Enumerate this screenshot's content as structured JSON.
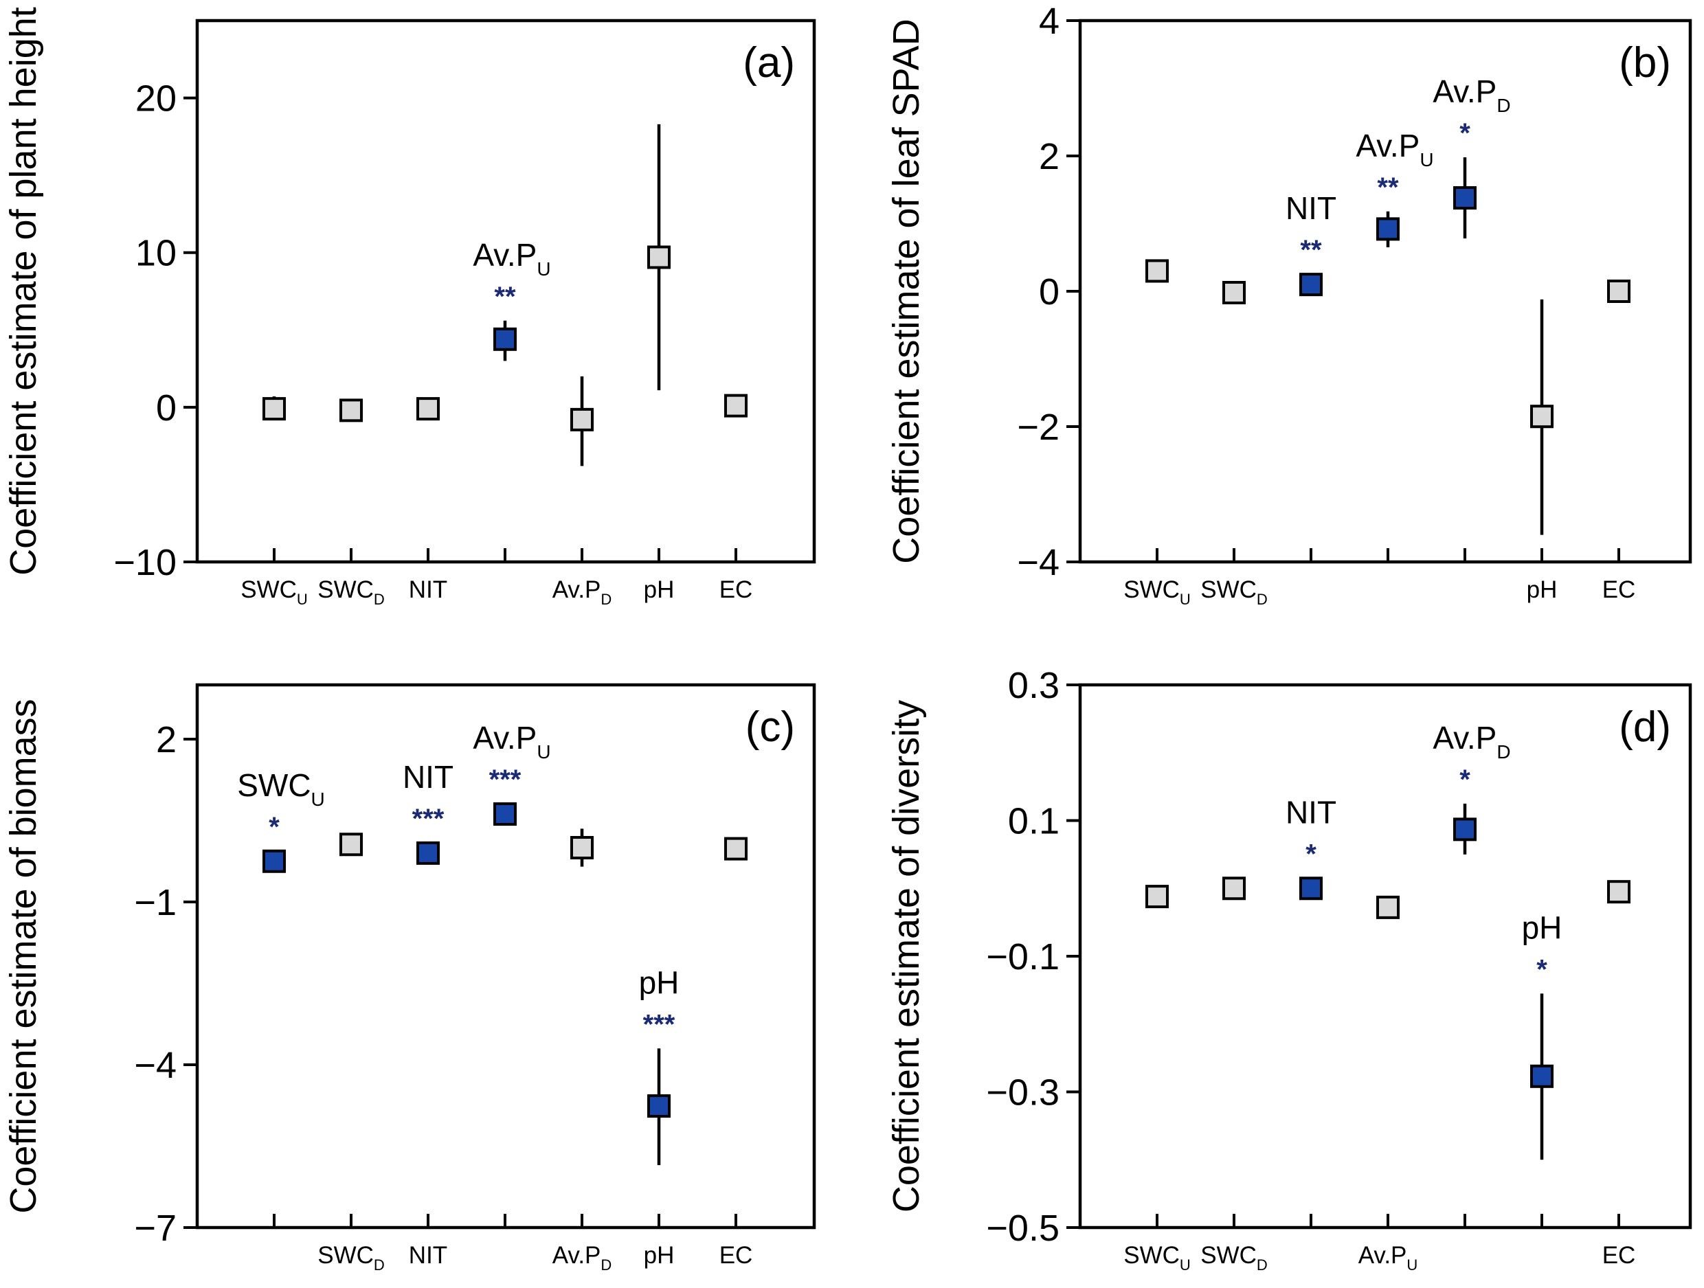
{
  "colors": {
    "significant": "#1746A8",
    "nonsignificant": "#D9D9D9",
    "stars": "#1B2A75"
  },
  "chart_data": [
    {
      "type": "scatter",
      "panel": "(a)",
      "title": "",
      "xlabel": "",
      "ylabel": "Coefficient estimate of plant height",
      "ylim": [
        -10,
        25
      ],
      "yticks": [
        -10,
        0,
        10,
        20
      ],
      "yticklabels": [
        "−10",
        "0",
        "10",
        "20"
      ],
      "categories": [
        {
          "main": "SWC",
          "sub": "U"
        },
        {
          "main": "SWC",
          "sub": "D"
        },
        {
          "main": "NIT",
          "sub": ""
        },
        {
          "main": "Av.P",
          "sub": "U"
        },
        {
          "main": "Av.P",
          "sub": "D"
        },
        {
          "main": "pH",
          "sub": ""
        },
        {
          "main": "EC",
          "sub": ""
        }
      ],
      "xtick_shown": [
        true,
        true,
        true,
        false,
        true,
        true,
        true
      ],
      "values": [
        -0.1,
        -0.2,
        -0.1,
        4.4,
        -0.8,
        9.7,
        0.1
      ],
      "err_low": [
        -0.8,
        -0.6,
        -0.5,
        3.0,
        -3.8,
        1.1,
        -0.3
      ],
      "err_high": [
        0.7,
        0.2,
        0.3,
        5.6,
        2.0,
        18.3,
        0.5
      ],
      "significant": [
        false,
        false,
        false,
        true,
        false,
        false,
        false
      ],
      "annotations": [
        {
          "index": 3,
          "label": "Av.P",
          "sub": "U",
          "stars": "**"
        }
      ]
    },
    {
      "type": "scatter",
      "panel": "(b)",
      "title": "",
      "xlabel": "",
      "ylabel": "Coefficient estimate of leaf SPAD",
      "ylim": [
        -4,
        4
      ],
      "yticks": [
        -4,
        -2,
        0,
        2,
        4
      ],
      "yticklabels": [
        "−4",
        "−2",
        "0",
        "2",
        "4"
      ],
      "categories": [
        {
          "main": "SWC",
          "sub": "U"
        },
        {
          "main": "SWC",
          "sub": "D"
        },
        {
          "main": "NIT",
          "sub": ""
        },
        {
          "main": "Av.P",
          "sub": "U"
        },
        {
          "main": "Av.P",
          "sub": "D"
        },
        {
          "main": "pH",
          "sub": ""
        },
        {
          "main": "EC",
          "sub": ""
        }
      ],
      "xtick_shown": [
        true,
        true,
        false,
        false,
        false,
        true,
        true
      ],
      "values": [
        0.3,
        -0.02,
        0.1,
        0.92,
        1.38,
        -1.85,
        0.0
      ],
      "err_low": [
        0.18,
        -0.08,
        0.02,
        0.65,
        0.78,
        -3.6,
        -0.04
      ],
      "err_high": [
        0.42,
        0.04,
        0.2,
        1.18,
        1.98,
        -0.12,
        0.04
      ],
      "significant": [
        false,
        false,
        true,
        true,
        true,
        false,
        false
      ],
      "annotations": [
        {
          "index": 2,
          "label": "NIT",
          "sub": "",
          "stars": "**"
        },
        {
          "index": 3,
          "label": "Av.P",
          "sub": "U",
          "stars": "**"
        },
        {
          "index": 4,
          "label": "Av.P",
          "sub": "D",
          "stars": "*"
        }
      ]
    },
    {
      "type": "scatter",
      "panel": "(c)",
      "title": "",
      "xlabel": "",
      "ylabel": "Coefficient estimate of biomass",
      "ylim": [
        -7,
        3
      ],
      "yticks": [
        -7,
        -4,
        -1,
        2
      ],
      "yticklabels": [
        "−7",
        "−4",
        "−1",
        "2"
      ],
      "categories": [
        {
          "main": "SWC",
          "sub": "U"
        },
        {
          "main": "SWC",
          "sub": "D"
        },
        {
          "main": "NIT",
          "sub": ""
        },
        {
          "main": "Av.P",
          "sub": "U"
        },
        {
          "main": "Av.P",
          "sub": "D"
        },
        {
          "main": "pH",
          "sub": ""
        },
        {
          "main": "EC",
          "sub": ""
        }
      ],
      "xtick_shown": [
        false,
        true,
        true,
        false,
        true,
        true,
        true
      ],
      "values": [
        -0.25,
        0.06,
        -0.1,
        0.62,
        0.0,
        -4.76,
        -0.02
      ],
      "err_low": [
        -0.3,
        0.0,
        -0.16,
        0.52,
        -0.35,
        -5.85,
        -0.08
      ],
      "err_high": [
        -0.2,
        0.12,
        -0.04,
        0.72,
        0.35,
        -3.7,
        0.04
      ],
      "significant": [
        true,
        false,
        true,
        true,
        false,
        true,
        false
      ],
      "annotations": [
        {
          "index": 0,
          "label": "SWC",
          "sub": "U",
          "stars": "*"
        },
        {
          "index": 2,
          "label": "NIT",
          "sub": "",
          "stars": "***"
        },
        {
          "index": 3,
          "label": "Av.P",
          "sub": "U",
          "stars": "***"
        },
        {
          "index": 5,
          "label": "pH",
          "sub": "",
          "stars": "***"
        }
      ]
    },
    {
      "type": "scatter",
      "panel": "(d)",
      "title": "",
      "xlabel": "",
      "ylabel": "Coefficient estimate of diversity",
      "ylim": [
        -0.5,
        0.3
      ],
      "yticks": [
        -0.5,
        -0.3,
        -0.1,
        0.1,
        0.3
      ],
      "yticklabels": [
        "−0.5",
        "−0.3",
        "−0.1",
        "0.1",
        "0.3"
      ],
      "categories": [
        {
          "main": "SWC",
          "sub": "U"
        },
        {
          "main": "SWC",
          "sub": "D"
        },
        {
          "main": "NIT",
          "sub": ""
        },
        {
          "main": "Av.P",
          "sub": "U"
        },
        {
          "main": "Av.P",
          "sub": "D"
        },
        {
          "main": "pH",
          "sub": ""
        },
        {
          "main": "EC",
          "sub": ""
        }
      ],
      "xtick_shown": [
        true,
        true,
        false,
        true,
        false,
        false,
        true
      ],
      "values": [
        -0.012,
        0.0,
        0.0,
        -0.028,
        0.087,
        -0.277,
        -0.005
      ],
      "err_low": [
        -0.018,
        -0.005,
        -0.006,
        -0.034,
        0.05,
        -0.4,
        -0.01
      ],
      "err_high": [
        -0.006,
        0.005,
        0.006,
        -0.022,
        0.125,
        -0.155,
        0.0
      ],
      "significant": [
        false,
        false,
        true,
        false,
        true,
        true,
        false
      ],
      "annotations": [
        {
          "index": 2,
          "label": "NIT",
          "sub": "",
          "stars": "*"
        },
        {
          "index": 4,
          "label": "Av.P",
          "sub": "D",
          "stars": "*"
        },
        {
          "index": 5,
          "label": "pH",
          "sub": "",
          "stars": "*"
        }
      ]
    }
  ]
}
